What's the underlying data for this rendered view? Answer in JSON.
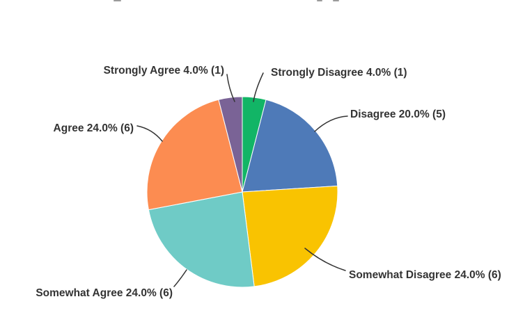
{
  "page": {
    "background_color": "#ffffff",
    "text_color": "#333333"
  },
  "chart_data": {
    "type": "pie",
    "title": "",
    "legend_position": "none",
    "label_style": "callout-with-leader-lines",
    "direction": "clockwise",
    "start_angle_deg": 0,
    "leader_line_color": "#333333",
    "slices": [
      {
        "label": "Strongly Disagree",
        "pct": 4.0,
        "count": 1,
        "color": "#12B566",
        "display": "Strongly Disagree 4.0% (1)"
      },
      {
        "label": "Disagree",
        "pct": 20.0,
        "count": 5,
        "color": "#4E7AB8",
        "display": "Disagree 20.0% (5)"
      },
      {
        "label": "Somewhat Disagree",
        "pct": 24.0,
        "count": 6,
        "color": "#F9C301",
        "display": "Somewhat Disagree 24.0% (6)"
      },
      {
        "label": "Somewhat Agree",
        "pct": 24.0,
        "count": 6,
        "color": "#6FCBC6",
        "display": "Somewhat Agree 24.0% (6)"
      },
      {
        "label": "Agree",
        "pct": 24.0,
        "count": 6,
        "color": "#FC8C51",
        "display": "Agree 24.0% (6)"
      },
      {
        "label": "Strongly Agree",
        "pct": 4.0,
        "count": 1,
        "color": "#7A6396",
        "display": "Strongly Agree 4.0% (1)"
      }
    ]
  }
}
